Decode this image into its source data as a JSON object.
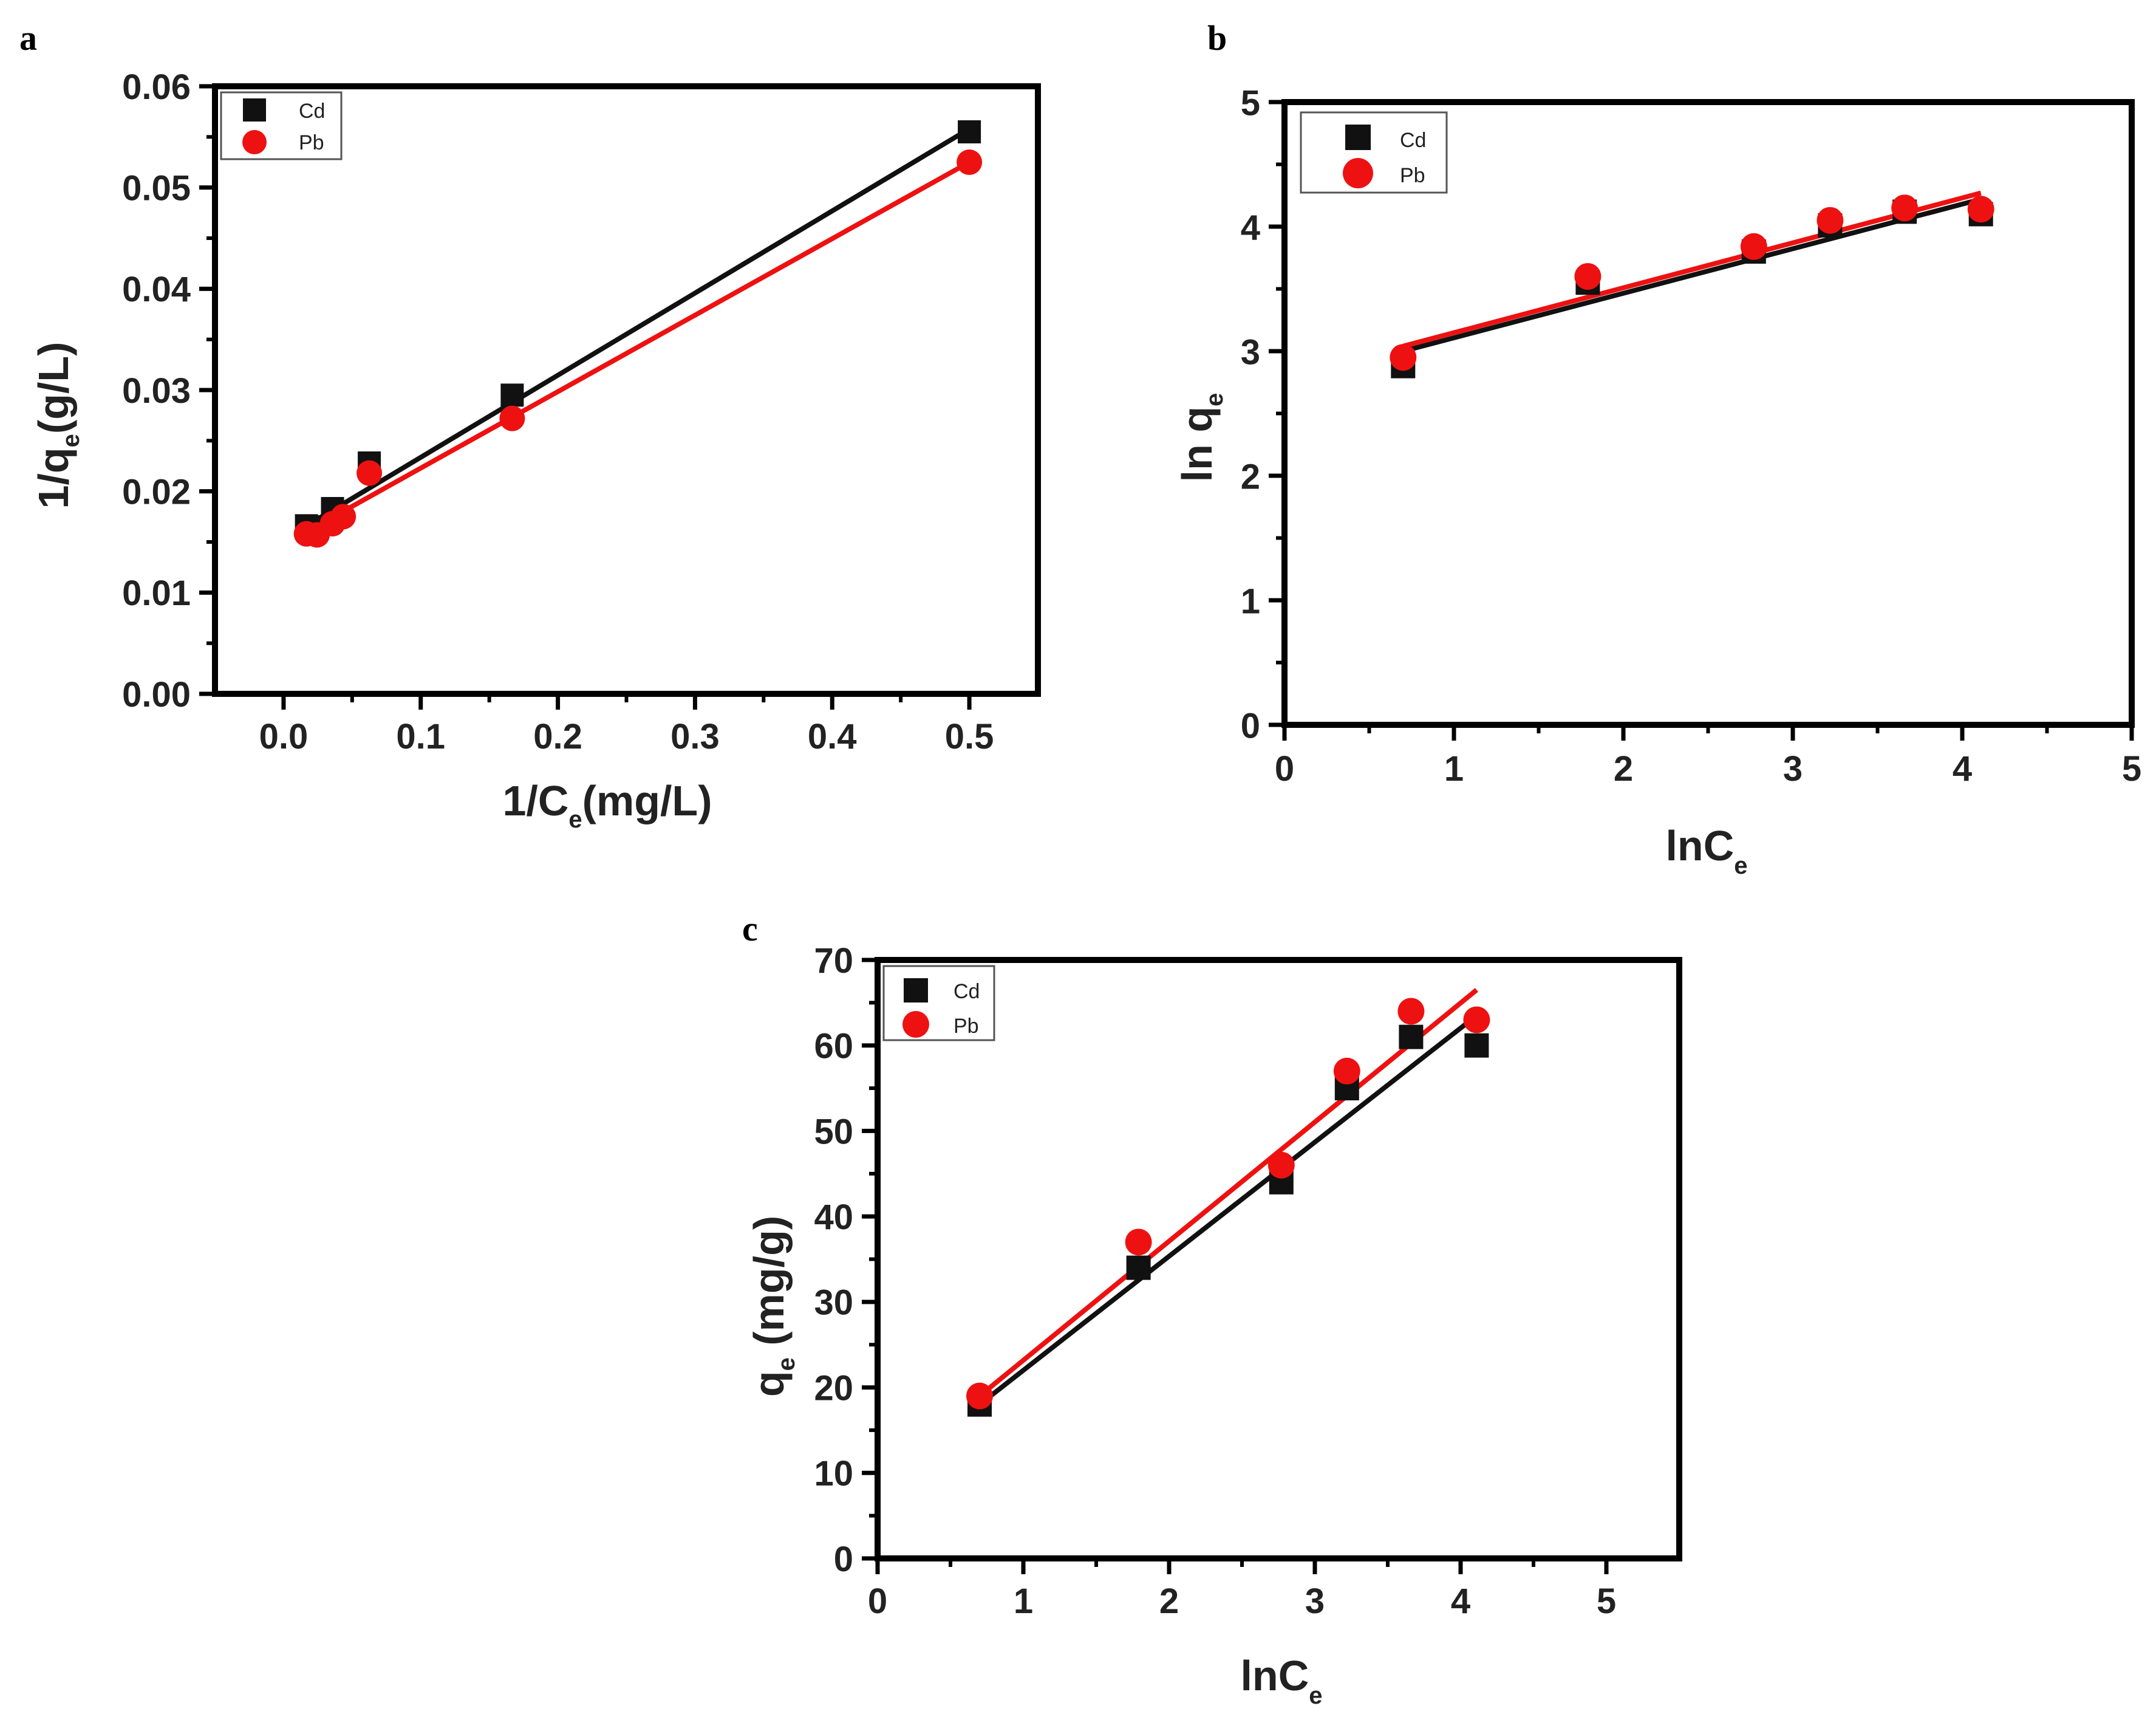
{
  "colors": {
    "Cd": "#111111",
    "Pb": "#ee1111",
    "axis": "#000000"
  },
  "chart_data": [
    {
      "panel": "a",
      "type": "scatter",
      "title": "",
      "xlabel": {
        "main": "1/C",
        "sub": "e",
        "tail": "(mg/L)"
      },
      "ylabel": {
        "main": "1/q",
        "sub": "e",
        "tail": "(g/L)"
      },
      "xlim": [
        -0.05,
        0.55
      ],
      "ylim": [
        0,
        0.06
      ],
      "xticks": [
        0.0,
        0.1,
        0.2,
        0.3,
        0.4,
        0.5
      ],
      "xtick_labels": [
        "0.0",
        "0.1",
        "0.2",
        "0.3",
        "0.4",
        "0.5"
      ],
      "yticks": [
        0,
        0.01,
        0.02,
        0.03,
        0.04,
        0.05,
        0.06
      ],
      "ytick_labels": [
        "0.00",
        "0.01",
        "0.02",
        "0.03",
        "0.04",
        "0.05",
        "0.06"
      ],
      "legend_position": "top-left",
      "legend_size": "small",
      "series": [
        {
          "name": "Cd",
          "marker": "square",
          "points": [
            [
              0.0167,
              0.0166
            ],
            [
              0.0244,
              0.0165
            ],
            [
              0.0357,
              0.0183
            ],
            [
              0.0625,
              0.0228
            ],
            [
              0.1667,
              0.0295
            ],
            [
              0.5,
              0.0555
            ]
          ],
          "fit": [
            [
              0.0167,
              0.0166
            ],
            [
              0.5,
              0.0558
            ]
          ]
        },
        {
          "name": "Pb",
          "marker": "circle",
          "points": [
            [
              0.0167,
              0.0158
            ],
            [
              0.0244,
              0.0157
            ],
            [
              0.0357,
              0.0168
            ],
            [
              0.0435,
              0.0175
            ],
            [
              0.0625,
              0.0218
            ],
            [
              0.1667,
              0.0272
            ],
            [
              0.5,
              0.0525
            ]
          ],
          "fit": [
            [
              0.0167,
              0.016
            ],
            [
              0.5,
              0.0525
            ]
          ]
        }
      ]
    },
    {
      "panel": "b",
      "type": "scatter",
      "title": "",
      "xlabel": {
        "main": "lnC",
        "sub": "e",
        "tail": ""
      },
      "ylabel": {
        "main": "ln q",
        "sub": "e",
        "tail": ""
      },
      "xlim": [
        0,
        5
      ],
      "ylim": [
        0,
        5
      ],
      "xticks": [
        0,
        1,
        2,
        3,
        4,
        5
      ],
      "xtick_labels": [
        "0",
        "1",
        "2",
        "3",
        "4",
        "5"
      ],
      "yticks": [
        0,
        1,
        2,
        3,
        4,
        5
      ],
      "ytick_labels": [
        "0",
        "1",
        "2",
        "3",
        "4",
        "5"
      ],
      "legend_position": "top-left",
      "legend_size": "large",
      "series": [
        {
          "name": "Cd",
          "marker": "square",
          "points": [
            [
              0.7,
              2.88
            ],
            [
              1.79,
              3.55
            ],
            [
              2.77,
              3.8
            ],
            [
              3.22,
              4.01
            ],
            [
              3.66,
              4.12
            ],
            [
              4.11,
              4.1
            ]
          ],
          "fit": [
            [
              0.7,
              3.0
            ],
            [
              4.11,
              4.22
            ]
          ]
        },
        {
          "name": "Pb",
          "marker": "circle",
          "points": [
            [
              0.7,
              2.95
            ],
            [
              1.79,
              3.6
            ],
            [
              2.77,
              3.84
            ],
            [
              3.22,
              4.05
            ],
            [
              3.66,
              4.15
            ],
            [
              4.11,
              4.14
            ]
          ],
          "fit": [
            [
              0.7,
              3.04
            ],
            [
              4.11,
              4.27
            ]
          ]
        }
      ]
    },
    {
      "panel": "c",
      "type": "scatter",
      "title": "",
      "xlabel": {
        "main": "lnC",
        "sub": "e",
        "tail": ""
      },
      "ylabel": {
        "main": "q",
        "sub": "e",
        "tail": " (mg/g)"
      },
      "xlim": [
        0,
        5.5
      ],
      "ylim": [
        0,
        70
      ],
      "xticks": [
        0,
        1,
        2,
        3,
        4,
        5
      ],
      "xtick_labels": [
        "0",
        "1",
        "2",
        "3",
        "4",
        "5"
      ],
      "yticks": [
        0,
        10,
        20,
        30,
        40,
        50,
        60,
        70
      ],
      "ytick_labels": [
        "0",
        "10",
        "20",
        "30",
        "40",
        "50",
        "60",
        "70"
      ],
      "legend_position": "top-left",
      "legend_size": "small",
      "series": [
        {
          "name": "Cd",
          "marker": "square",
          "points": [
            [
              0.7,
              18
            ],
            [
              1.79,
              34
            ],
            [
              2.77,
              44
            ],
            [
              3.22,
              55
            ],
            [
              3.66,
              61
            ],
            [
              4.11,
              60
            ]
          ],
          "fit": [
            [
              0.7,
              18
            ],
            [
              4.11,
              63.5
            ]
          ]
        },
        {
          "name": "Pb",
          "marker": "circle",
          "points": [
            [
              0.7,
              19
            ],
            [
              1.79,
              37
            ],
            [
              2.77,
              46
            ],
            [
              3.22,
              57
            ],
            [
              3.66,
              64
            ],
            [
              4.11,
              63
            ]
          ],
          "fit": [
            [
              0.7,
              19
            ],
            [
              4.11,
              66.5
            ]
          ]
        }
      ]
    }
  ]
}
